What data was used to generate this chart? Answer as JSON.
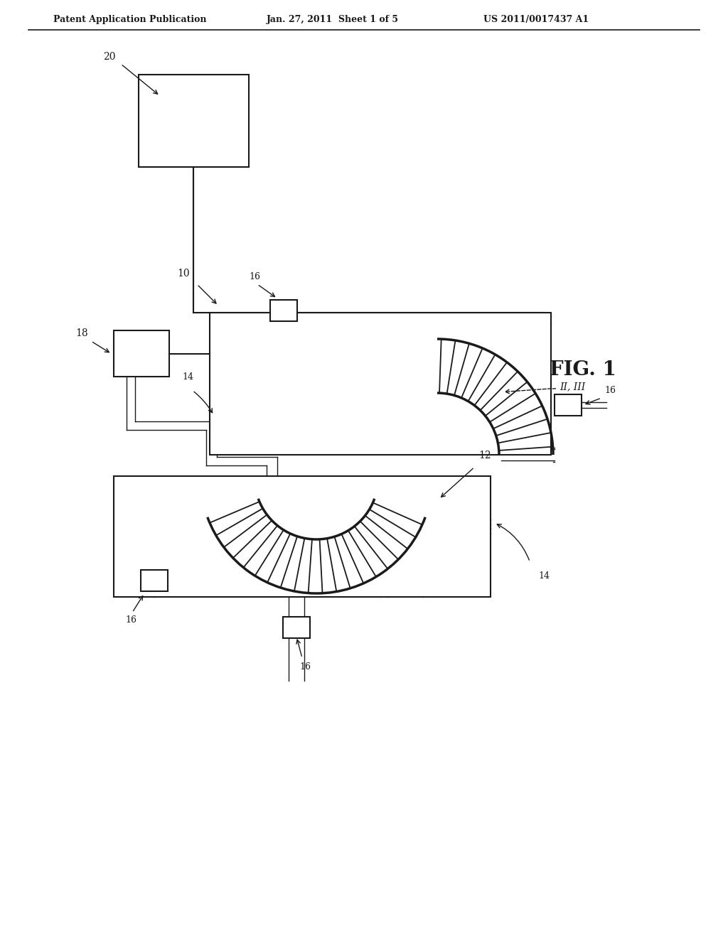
{
  "bg_color": "#ffffff",
  "line_color": "#1a1a1a",
  "header_left": "Patent Application Publication",
  "header_mid": "Jan. 27, 2011  Sheet 1 of 5",
  "header_right": "US 2011/0017437 A1",
  "fig_label": "FIG. 1",
  "label_10": "10",
  "label_12": "12",
  "label_14": "14",
  "label_16": "16",
  "label_18": "18",
  "label_20": "20",
  "label_II_III": "II, III"
}
